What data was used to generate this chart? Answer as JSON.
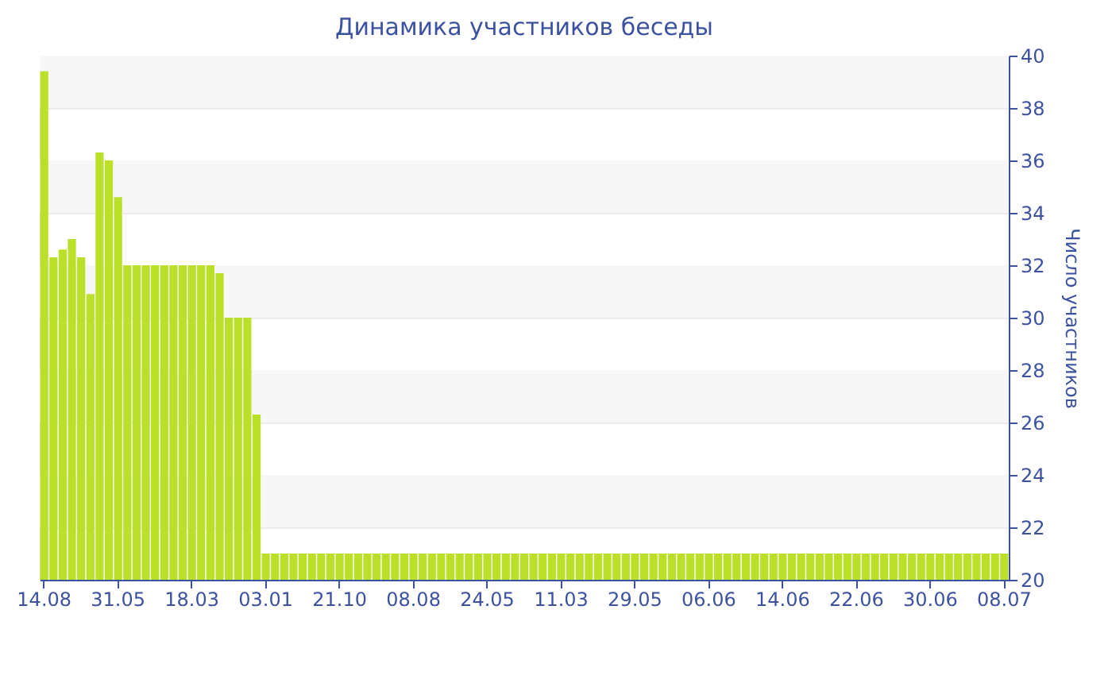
{
  "chart_data": {
    "type": "bar",
    "title": "Динамика участников беседы",
    "ylabel": "Число участников",
    "categories": [
      "14.08",
      null,
      null,
      null,
      null,
      null,
      null,
      null,
      "31.05",
      null,
      null,
      null,
      null,
      null,
      null,
      null,
      "18.03",
      null,
      null,
      null,
      null,
      null,
      null,
      null,
      "03.01",
      null,
      null,
      null,
      null,
      null,
      null,
      null,
      "21.10",
      null,
      null,
      null,
      null,
      null,
      null,
      null,
      "08.08",
      null,
      null,
      null,
      null,
      null,
      null,
      null,
      "24.05",
      null,
      null,
      null,
      null,
      null,
      null,
      null,
      "11.03",
      null,
      null,
      null,
      null,
      null,
      null,
      null,
      "29.05",
      null,
      null,
      null,
      null,
      null,
      null,
      null,
      "06.06",
      null,
      null,
      null,
      null,
      null,
      null,
      null,
      "14.06",
      null,
      null,
      null,
      null,
      null,
      null,
      null,
      "22.06",
      null,
      null,
      null,
      null,
      null,
      null,
      null,
      "30.06",
      null,
      null,
      null,
      null,
      null,
      null,
      null,
      "08.07"
    ],
    "values": [
      39.4,
      32.3,
      32.6,
      33,
      32.3,
      30.9,
      36.3,
      36,
      34.6,
      32,
      32,
      32,
      32,
      32,
      32,
      32,
      32,
      32,
      32,
      31.7,
      30,
      30,
      30,
      26.3,
      21,
      21,
      21,
      21,
      21,
      21,
      21,
      21,
      21,
      21,
      21,
      21,
      21,
      21,
      21,
      21,
      21,
      21,
      21,
      21,
      21,
      21,
      21,
      21,
      21,
      21,
      21,
      21,
      21,
      21,
      21,
      21,
      21,
      21,
      21,
      21,
      21,
      21,
      21,
      21,
      21,
      21,
      21,
      21,
      21,
      21,
      21,
      21,
      21,
      21,
      21,
      21,
      21,
      21,
      21,
      21,
      21,
      21,
      21,
      21,
      21,
      21,
      21,
      21,
      21,
      21,
      21,
      21,
      21,
      21,
      21,
      21,
      21,
      21,
      21,
      21,
      21,
      21,
      21,
      21,
      21
    ],
    "color": "#bbe02a",
    "ylim": [
      20,
      40
    ],
    "yticks": [
      20,
      22,
      24,
      26,
      28,
      30,
      32,
      34,
      36,
      38,
      40
    ],
    "grid": "y"
  }
}
